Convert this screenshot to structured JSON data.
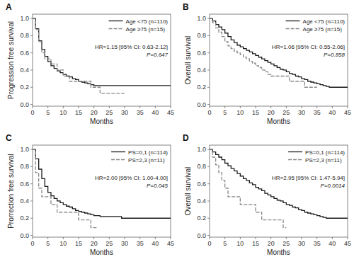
{
  "chart_data": [
    {
      "type": "step",
      "title": "A",
      "x_label": "Months",
      "y_label": "Progression free survival",
      "xlim": [
        0,
        45
      ],
      "ylim": [
        -0.02,
        1.05
      ],
      "xticks": [
        0,
        5,
        10,
        15,
        20,
        25,
        30,
        35,
        40,
        45
      ],
      "yticks": [
        {
          "value": 0.0,
          "label": "0.0"
        },
        0.2,
        0.4,
        0.6,
        0.8,
        {
          "value": 1.0,
          "label": "1.0"
        }
      ],
      "grid": false,
      "legend": "upper right",
      "annotations": [
        "HR=1.15 [95% CI: 0.63-2.12]",
        "P=0.647"
      ],
      "series": [
        {
          "name": "Age <75 (n=110)",
          "color": "#1a1a1a",
          "line_style": "solid",
          "x": [
            0,
            1,
            2,
            3,
            4,
            5,
            6,
            7,
            8,
            9,
            10,
            11,
            12,
            13,
            14,
            15,
            16,
            17,
            18,
            19,
            20,
            25,
            30,
            35,
            40,
            45
          ],
          "values": [
            1.0,
            0.88,
            0.74,
            0.64,
            0.56,
            0.5,
            0.45,
            0.42,
            0.39,
            0.37,
            0.35,
            0.33,
            0.32,
            0.3,
            0.29,
            0.27,
            0.26,
            0.25,
            0.24,
            0.23,
            0.22,
            0.22,
            0.22,
            0.22,
            0.22,
            0.22
          ]
        },
        {
          "name": "Age ≥75 (n=15)",
          "color": "#888888",
          "line_style": "dashed",
          "x": [
            0,
            1,
            2,
            3,
            4,
            5,
            6,
            8,
            10,
            12,
            14,
            15,
            16,
            17,
            18,
            19,
            20,
            22,
            24,
            26,
            28,
            30
          ],
          "values": [
            1.0,
            0.87,
            0.73,
            0.6,
            0.53,
            0.53,
            0.47,
            0.4,
            0.33,
            0.27,
            0.27,
            0.27,
            0.27,
            0.27,
            0.27,
            0.2,
            0.2,
            0.13,
            0.13,
            0.13,
            0.13,
            0.13
          ]
        }
      ]
    },
    {
      "type": "step",
      "title": "B",
      "x_label": "Months",
      "y_label": "Overall survival",
      "xlim": [
        0,
        45
      ],
      "ylim": [
        -0.02,
        1.05
      ],
      "xticks": [
        0,
        5,
        10,
        15,
        20,
        25,
        30,
        35,
        40,
        45
      ],
      "yticks": [
        {
          "value": 0.0,
          "label": "0.0"
        },
        0.2,
        0.4,
        0.6,
        0.8,
        {
          "value": 1.0,
          "label": "1.0"
        }
      ],
      "grid": false,
      "legend": "upper right",
      "annotations": [
        "HR=1.06 [95% CI: 0.55-2.06]",
        "P=0.858"
      ],
      "series": [
        {
          "name": "Age <75 (n=110)",
          "color": "#1a1a1a",
          "line_style": "solid",
          "x": [
            0,
            1,
            2,
            3,
            4,
            5,
            6,
            7,
            8,
            9,
            10,
            11,
            12,
            13,
            14,
            15,
            16,
            17,
            18,
            19,
            20,
            21,
            22,
            23,
            24,
            25,
            26,
            27,
            28,
            29,
            30,
            31,
            32,
            33,
            34,
            35,
            36,
            37,
            38,
            39,
            40,
            41,
            42,
            43,
            44,
            45
          ],
          "values": [
            1.0,
            0.97,
            0.93,
            0.9,
            0.87,
            0.83,
            0.79,
            0.75,
            0.72,
            0.69,
            0.67,
            0.65,
            0.63,
            0.61,
            0.59,
            0.57,
            0.55,
            0.53,
            0.51,
            0.49,
            0.47,
            0.45,
            0.43,
            0.41,
            0.4,
            0.38,
            0.36,
            0.35,
            0.33,
            0.32,
            0.3,
            0.29,
            0.27,
            0.26,
            0.25,
            0.24,
            0.23,
            0.22,
            0.21,
            0.2,
            0.2,
            0.2,
            0.2,
            0.2,
            0.2,
            0.2
          ]
        },
        {
          "name": "Age ≥75 (n=15)",
          "color": "#888888",
          "line_style": "dashed",
          "x": [
            0,
            1,
            2,
            3,
            4,
            5,
            6,
            7,
            8,
            9,
            10,
            11,
            12,
            13,
            14,
            15,
            16,
            17,
            18,
            19,
            20,
            21,
            22,
            23,
            24,
            25,
            26,
            27,
            28,
            29,
            30,
            31,
            32,
            33,
            34,
            35
          ],
          "values": [
            1.0,
            0.95,
            0.89,
            0.84,
            0.79,
            0.73,
            0.68,
            0.65,
            0.62,
            0.6,
            0.58,
            0.55,
            0.53,
            0.5,
            0.48,
            0.45,
            0.43,
            0.4,
            0.38,
            0.35,
            0.33,
            0.33,
            0.33,
            0.33,
            0.33,
            0.33,
            0.27,
            0.27,
            0.27,
            0.27,
            0.27,
            0.2,
            0.2,
            0.2,
            0.2,
            0.2
          ]
        }
      ]
    },
    {
      "type": "step",
      "title": "C",
      "x_label": "Months",
      "y_label": "Prorrection free survival",
      "xlim": [
        0,
        45
      ],
      "ylim": [
        -0.02,
        1.05
      ],
      "xticks": [
        0,
        5,
        10,
        15,
        20,
        25,
        30,
        35,
        40,
        45
      ],
      "yticks": [
        {
          "value": 0.0,
          "label": "0.0"
        },
        0.2,
        0.4,
        0.6,
        0.8,
        {
          "value": 1.0,
          "label": "1.0"
        }
      ],
      "grid": false,
      "legend": "upper right",
      "annotations": [
        "HR=2.00 [95% CI: 1.00-4.00]",
        "P=0.045"
      ],
      "series": [
        {
          "name": "PS=0,1 (n=114)",
          "color": "#1a1a1a",
          "line_style": "solid",
          "x": [
            0,
            1,
            2,
            3,
            4,
            5,
            6,
            7,
            8,
            9,
            10,
            11,
            12,
            13,
            14,
            15,
            16,
            17,
            18,
            19,
            20,
            22,
            24,
            26,
            27,
            28,
            29,
            30,
            35,
            40,
            45
          ],
          "values": [
            1.0,
            0.89,
            0.77,
            0.66,
            0.57,
            0.5,
            0.46,
            0.43,
            0.4,
            0.38,
            0.36,
            0.34,
            0.33,
            0.31,
            0.29,
            0.28,
            0.27,
            0.26,
            0.25,
            0.24,
            0.23,
            0.22,
            0.22,
            0.22,
            0.22,
            0.22,
            0.2,
            0.2,
            0.2,
            0.2,
            0.2
          ]
        },
        {
          "name": "PS=2,3 (n=11)",
          "color": "#888888",
          "line_style": "dashed",
          "x": [
            0,
            1,
            2,
            3,
            4,
            5,
            6,
            8,
            10,
            12,
            14,
            15,
            16,
            18,
            19,
            20,
            21
          ],
          "values": [
            1.0,
            0.73,
            0.55,
            0.45,
            0.45,
            0.45,
            0.36,
            0.27,
            0.27,
            0.27,
            0.27,
            0.18,
            0.18,
            0.18,
            0.09,
            0.09,
            0.09
          ]
        }
      ]
    },
    {
      "type": "step",
      "title": "D",
      "x_label": "Months",
      "y_label": "Overall survival",
      "xlim": [
        0,
        45
      ],
      "ylim": [
        -0.02,
        1.05
      ],
      "xticks": [
        0,
        5,
        10,
        15,
        20,
        25,
        30,
        35,
        40,
        45
      ],
      "yticks": [
        {
          "value": 0.0,
          "label": "0.0"
        },
        0.2,
        0.4,
        0.6,
        0.8,
        {
          "value": 1.0,
          "label": "1.0"
        }
      ],
      "grid": false,
      "legend": "upper right",
      "annotations": [
        "HR=2.95 [95% CI: 1.47-5.94]",
        "P=0.0014"
      ],
      "series": [
        {
          "name": "PS=0,1 (n=114)",
          "color": "#1a1a1a",
          "line_style": "solid",
          "x": [
            0,
            1,
            2,
            3,
            4,
            5,
            6,
            7,
            8,
            9,
            10,
            11,
            12,
            13,
            14,
            15,
            16,
            17,
            18,
            19,
            20,
            21,
            22,
            23,
            24,
            25,
            26,
            27,
            28,
            29,
            30,
            31,
            32,
            33,
            34,
            35,
            36,
            37,
            38,
            39,
            40,
            41,
            42,
            43,
            44,
            45
          ],
          "values": [
            1.0,
            0.97,
            0.94,
            0.91,
            0.88,
            0.84,
            0.81,
            0.78,
            0.75,
            0.72,
            0.69,
            0.66,
            0.64,
            0.61,
            0.59,
            0.56,
            0.54,
            0.52,
            0.49,
            0.47,
            0.45,
            0.43,
            0.41,
            0.4,
            0.38,
            0.36,
            0.35,
            0.33,
            0.32,
            0.3,
            0.29,
            0.27,
            0.26,
            0.25,
            0.24,
            0.23,
            0.22,
            0.21,
            0.2,
            0.2,
            0.2,
            0.2,
            0.2,
            0.2,
            0.2,
            0.2
          ]
        },
        {
          "name": "PS=2,3 (n=11)",
          "color": "#888888",
          "line_style": "dashed",
          "x": [
            0,
            1,
            2,
            3,
            4,
            5,
            6,
            7,
            8,
            9,
            10,
            11,
            12,
            13,
            14,
            15,
            16,
            17,
            18,
            19,
            20,
            21,
            22,
            23,
            24,
            25
          ],
          "values": [
            1.0,
            0.91,
            0.82,
            0.73,
            0.64,
            0.55,
            0.45,
            0.45,
            0.45,
            0.45,
            0.36,
            0.36,
            0.36,
            0.36,
            0.36,
            0.27,
            0.27,
            0.18,
            0.18,
            0.18,
            0.18,
            0.18,
            0.18,
            0.18,
            0.09,
            0.09
          ]
        }
      ]
    }
  ]
}
